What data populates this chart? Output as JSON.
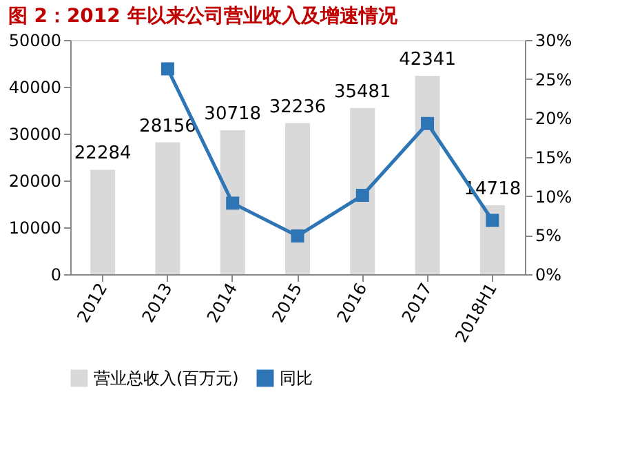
{
  "chart_data": {
    "type": "bar",
    "title": "图 2：2012 年以来公司营业收入及增速情况",
    "categories": [
      "2012",
      "2013",
      "2014",
      "2015",
      "2016",
      "2017",
      "2018H1"
    ],
    "series": [
      {
        "name": "营业总收入(百万元)",
        "color": "#d9d9d9",
        "values": [
          22284,
          28156,
          30718,
          32236,
          35481,
          42341,
          14718
        ],
        "value_labels": [
          "22284",
          "28156",
          "30718",
          "32236",
          "35481",
          "42341",
          "14718"
        ]
      },
      {
        "name": "同比",
        "type": "line",
        "axis": "y2",
        "color": "#2e75b6",
        "marker": "square",
        "values": [
          null,
          26.3,
          9.1,
          4.9,
          10.1,
          19.3,
          6.9
        ]
      }
    ],
    "ylim": [
      0,
      50000
    ],
    "yticks": [
      0,
      10000,
      20000,
      30000,
      40000,
      50000
    ],
    "y2lim": [
      0,
      30
    ],
    "y2ticks": [
      {
        "value": 0,
        "label": "0%"
      },
      {
        "value": 5,
        "label": "5%"
      },
      {
        "value": 10,
        "label": "10%"
      },
      {
        "value": 15,
        "label": "15%"
      },
      {
        "value": 20,
        "label": "20%"
      },
      {
        "value": 25,
        "label": "25%"
      },
      {
        "value": 30,
        "label": "30%"
      }
    ],
    "legend": "bottom",
    "grid": false
  }
}
